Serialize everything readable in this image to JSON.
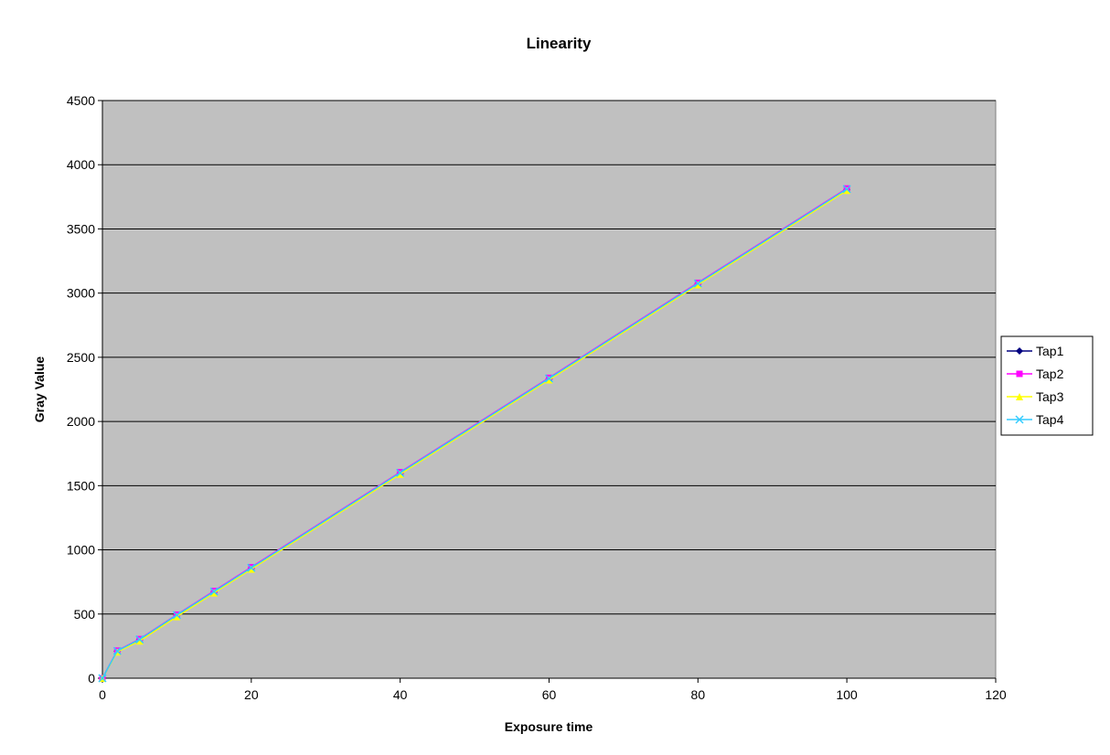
{
  "chart_data": {
    "type": "line",
    "title": "Linearity",
    "xlabel": "Exposure time",
    "ylabel": "Gray Value",
    "xlim": [
      0,
      120
    ],
    "ylim": [
      0,
      4500
    ],
    "xticks": [
      0,
      20,
      40,
      60,
      80,
      100,
      120
    ],
    "yticks": [
      0,
      500,
      1000,
      1500,
      2000,
      2500,
      3000,
      3500,
      4000,
      4500
    ],
    "grid": "horizontal",
    "plot_background": "#c0c0c0",
    "legend_position": "right",
    "x": [
      0,
      2,
      5,
      10,
      15,
      20,
      40,
      60,
      80,
      100
    ],
    "series": [
      {
        "name": "Tap1",
        "color": "#000080",
        "marker": "diamond",
        "values": [
          0,
          210,
          300,
          490,
          670,
          855,
          1595,
          2330,
          3070,
          3805
        ]
      },
      {
        "name": "Tap2",
        "color": "#ff00ff",
        "marker": "square",
        "values": [
          0,
          215,
          305,
          495,
          680,
          865,
          1605,
          2340,
          3080,
          3815
        ]
      },
      {
        "name": "Tap3",
        "color": "#ffff00",
        "marker": "triangle",
        "values": [
          0,
          205,
          290,
          480,
          665,
          850,
          1590,
          2325,
          3065,
          3800
        ]
      },
      {
        "name": "Tap4",
        "color": "#33ccff",
        "marker": "x",
        "values": [
          0,
          212,
          302,
          492,
          675,
          860,
          1600,
          2335,
          3075,
          3810
        ]
      }
    ]
  }
}
